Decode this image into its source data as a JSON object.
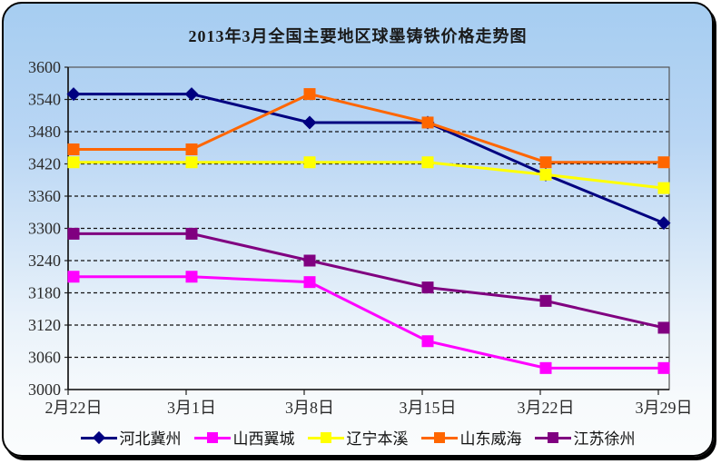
{
  "title": "2013年3月全国主要地区球墨铸铁价格走势图",
  "chart_data": {
    "type": "line",
    "title": "2013年3月全国主要地区球墨铸铁价格走势图",
    "categories": [
      "2月22日",
      "3月1日",
      "3月8日",
      "3月15日",
      "3月22日",
      "3月29日"
    ],
    "series": [
      {
        "name": "河北冀州",
        "color": "#000080",
        "marker": "diamond",
        "values": [
          3550,
          3550,
          3497,
          3497,
          3400,
          3310
        ]
      },
      {
        "name": "山西翼城",
        "color": "#FF00FF",
        "marker": "square",
        "values": [
          3210,
          3210,
          3200,
          3090,
          3040,
          3040
        ]
      },
      {
        "name": "辽宁本溪",
        "color": "#FFFF00",
        "marker": "square",
        "values": [
          3423,
          3423,
          3423,
          3423,
          3400,
          3375
        ]
      },
      {
        "name": "山东威海",
        "color": "#FF6600",
        "marker": "square",
        "values": [
          3447,
          3447,
          3550,
          3497,
          3423,
          3423
        ]
      },
      {
        "name": "江苏徐州",
        "color": "#800080",
        "marker": "square",
        "values": [
          3290,
          3290,
          3240,
          3190,
          3165,
          3115
        ]
      }
    ],
    "ylim": [
      3000,
      3600
    ],
    "ytick_step": 60,
    "yticks": [
      3000,
      3060,
      3120,
      3180,
      3240,
      3300,
      3360,
      3420,
      3480,
      3540,
      3600
    ],
    "xlabel": "",
    "ylabel": "",
    "grid": "horizontal-dashed",
    "legend_position": "bottom"
  },
  "colors": {
    "card_background_top": "#A6CDF1",
    "card_background_bottom": "#FAFCFD",
    "card_border": "#000000",
    "title_text": "#1A1A1A",
    "axis_text": "#2B2B2B",
    "gridline": "#111111",
    "plot_border": "#555555"
  }
}
